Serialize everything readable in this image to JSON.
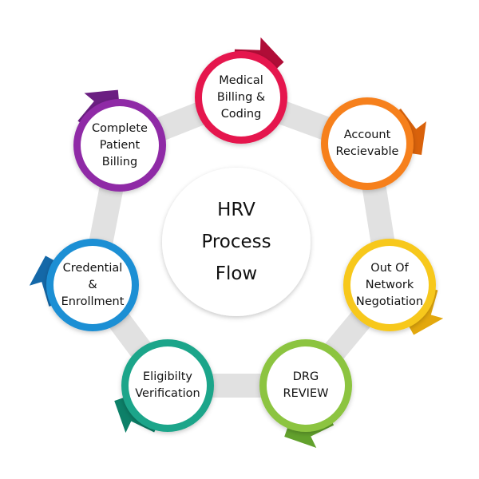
{
  "center": {
    "label": "HRV\nProcess\nFlow"
  },
  "steps": [
    {
      "label": "Medical\nBilling &\nCoding",
      "color": "#e5194e",
      "dark": "#b00d37"
    },
    {
      "label": "Account\nRecievable",
      "color": "#f6801f",
      "dark": "#d9620b"
    },
    {
      "label": "Out Of\nNetwork\nNegotiation",
      "color": "#f7c81d",
      "dark": "#e3a80d"
    },
    {
      "label": "DRG\nREVIEW",
      "color": "#8cc43f",
      "dark": "#62a12c"
    },
    {
      "label": "Eligibilty\nVerification",
      "color": "#1ea58a",
      "dark": "#0d8068"
    },
    {
      "label": "Credential\n&\nEnrollment",
      "color": "#1f8fd4",
      "dark": "#1468a8"
    },
    {
      "label": "Complete\nPatient\nBilling",
      "color": "#8f2aa6",
      "dark": "#6b1f82"
    }
  ],
  "colors": {
    "ring": "#e1e1e1",
    "center_fill": "#ffffff"
  }
}
